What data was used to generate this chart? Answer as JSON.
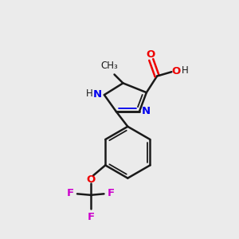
{
  "background_color": "#ebebeb",
  "bond_color": "#1a1a1a",
  "nitrogen_color": "#0000ee",
  "oxygen_color": "#ee0000",
  "fluorine_color": "#cc00cc",
  "figsize": [
    3.0,
    3.0
  ],
  "dpi": 100,
  "xlim": [
    0,
    10
  ],
  "ylim": [
    0,
    10
  ]
}
